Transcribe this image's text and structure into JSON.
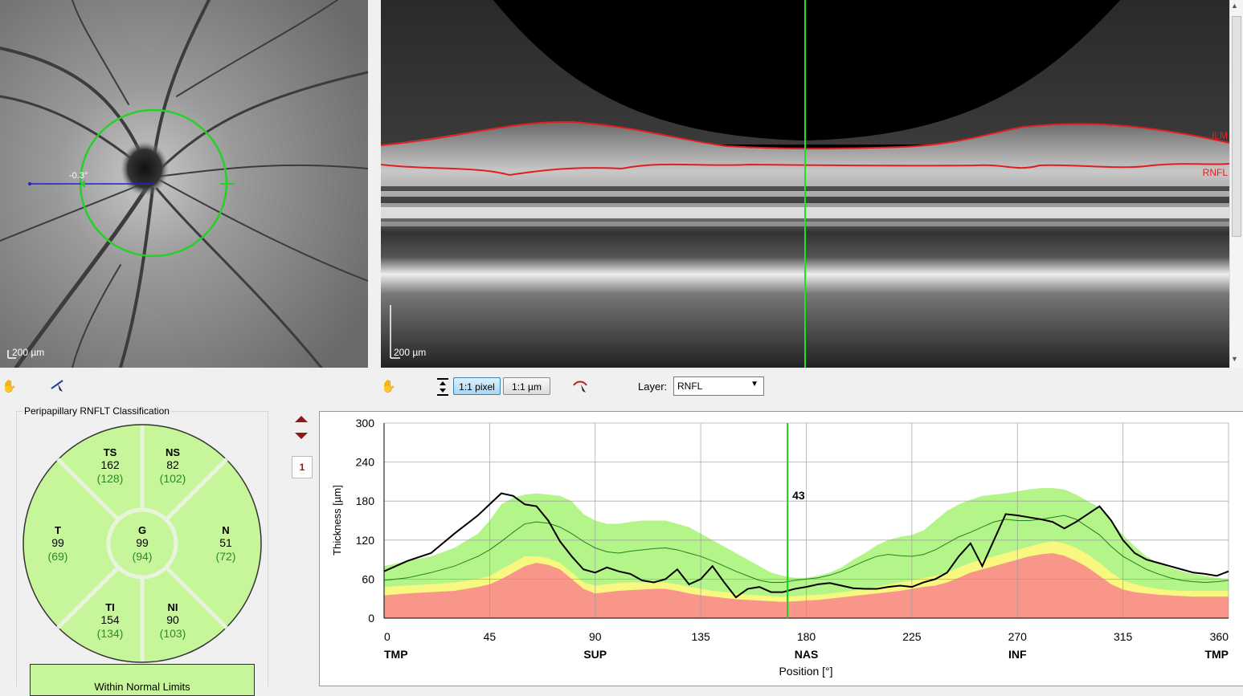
{
  "fundus": {
    "scale_label": "200 µm",
    "angle_label": "-0.3°",
    "circle_color": "#27d027",
    "line_color": "#2020d0"
  },
  "oct": {
    "scale_label": "200 µm",
    "layers": [
      "ILM",
      "RNFL"
    ],
    "line_color": "#e02020",
    "cursor_color": "#1ee01e"
  },
  "toolbar": {
    "hand_icon_left": "hand-pan-icon",
    "measure_icon": "measure-cursor-icon",
    "hand_icon_right": "hand-pan-icon",
    "fit_icon": "fit-height-icon",
    "pixel_label": "1:1 pixel",
    "um_label": "1:1 µm",
    "caliper_icon": "caliper-icon",
    "layer_label": "Layer:",
    "layer_value": "RNFL"
  },
  "classification": {
    "title": "Peripapillary RNFLT Classification",
    "fill": "#c6f59a",
    "sectors": {
      "TS": {
        "name": "TS",
        "value": "162",
        "ref": "(128)"
      },
      "NS": {
        "name": "NS",
        "value": "82",
        "ref": "(102)"
      },
      "T": {
        "name": "T",
        "value": "99",
        "ref": "(69)"
      },
      "G": {
        "name": "G",
        "value": "99",
        "ref": "(94)"
      },
      "N": {
        "name": "N",
        "value": "51",
        "ref": "(72)"
      },
      "TI": {
        "name": "TI",
        "value": "154",
        "ref": "(134)"
      },
      "NI": {
        "name": "NI",
        "value": "90",
        "ref": "(103)"
      }
    },
    "result": "Within Normal Limits"
  },
  "side_controls": {
    "up_icon": "arrow-up-icon",
    "down_icon": "arrow-down-icon",
    "page_number": "1"
  },
  "chart_data": {
    "type": "line",
    "xlabel": "Position [°]",
    "ylabel": "Thickness [µm]",
    "xlim": [
      0,
      360
    ],
    "ylim": [
      0,
      300
    ],
    "x_ticks": [
      0,
      45,
      90,
      135,
      180,
      225,
      270,
      315,
      360
    ],
    "y_ticks": [
      0,
      60,
      120,
      180,
      240,
      300
    ],
    "sector_labels": [
      {
        "x": 0,
        "label": "TMP"
      },
      {
        "x": 90,
        "label": "SUP"
      },
      {
        "x": 180,
        "label": "NAS"
      },
      {
        "x": 270,
        "label": "INF"
      },
      {
        "x": 360,
        "label": "TMP"
      }
    ],
    "cursor": {
      "x": 172,
      "value": "43"
    },
    "grid": true,
    "colors": {
      "green": "#b4f58a",
      "yellow": "#f8f880",
      "red": "#f8968a",
      "measured": "#000000",
      "normal": "#208020",
      "cursor": "#1ed01e"
    },
    "x": [
      0,
      10,
      20,
      30,
      40,
      45,
      50,
      55,
      60,
      65,
      70,
      75,
      80,
      85,
      90,
      95,
      100,
      105,
      110,
      115,
      120,
      125,
      130,
      135,
      140,
      145,
      150,
      155,
      160,
      165,
      170,
      175,
      180,
      185,
      190,
      195,
      200,
      205,
      210,
      215,
      220,
      225,
      230,
      235,
      240,
      245,
      250,
      255,
      260,
      265,
      270,
      275,
      280,
      285,
      290,
      295,
      300,
      305,
      310,
      315,
      320,
      325,
      330,
      335,
      340,
      345,
      350,
      355,
      360
    ],
    "series": [
      {
        "values": [
          72,
          88,
          100,
          130,
          158,
          175,
          192,
          188,
          175,
          172,
          150,
          118,
          95,
          75,
          70,
          78,
          72,
          68,
          58,
          55,
          60,
          75,
          52,
          60,
          80,
          55,
          32,
          45,
          48,
          40,
          40,
          45,
          48,
          52,
          54,
          50,
          46,
          45,
          45,
          48,
          50,
          48,
          55,
          60,
          70,
          95,
          115,
          80,
          120,
          160,
          158,
          155,
          152,
          148,
          138,
          148,
          160,
          172,
          150,
          120,
          100,
          90,
          85,
          80,
          75,
          70,
          68,
          65,
          72
        ]
      },
      {
        "values": [
          58,
          62,
          70,
          80,
          95,
          105,
          118,
          132,
          145,
          148,
          146,
          140,
          130,
          118,
          108,
          102,
          100,
          103,
          105,
          107,
          108,
          105,
          100,
          95,
          88,
          80,
          72,
          65,
          58,
          55,
          55,
          58,
          60,
          62,
          66,
          72,
          80,
          88,
          95,
          98,
          96,
          95,
          98,
          105,
          115,
          125,
          132,
          140,
          148,
          152,
          150,
          150,
          152,
          155,
          158,
          152,
          140,
          128,
          110,
          95,
          85,
          75,
          68,
          62,
          58,
          56,
          55,
          56,
          58
        ]
      }
    ],
    "bands": {
      "green_top": [
        80,
        88,
        95,
        108,
        130,
        150,
        175,
        185,
        190,
        192,
        190,
        188,
        180,
        160,
        150,
        145,
        145,
        148,
        150,
        150,
        150,
        145,
        140,
        130,
        120,
        110,
        100,
        90,
        80,
        70,
        65,
        62,
        62,
        65,
        70,
        78,
        90,
        100,
        112,
        120,
        125,
        128,
        135,
        150,
        165,
        175,
        182,
        188,
        190,
        192,
        195,
        198,
        200,
        200,
        198,
        190,
        180,
        170,
        150,
        128,
        110,
        95,
        85,
        78,
        72,
        68,
        65,
        62,
        60
      ],
      "yellow_top": [
        48,
        50,
        52,
        55,
        60,
        65,
        75,
        85,
        95,
        95,
        92,
        85,
        70,
        55,
        50,
        52,
        54,
        55,
        55,
        55,
        55,
        52,
        48,
        45,
        42,
        40,
        38,
        36,
        35,
        34,
        33,
        34,
        35,
        36,
        38,
        40,
        42,
        45,
        48,
        52,
        55,
        58,
        62,
        65,
        70,
        78,
        85,
        90,
        95,
        100,
        105,
        110,
        115,
        118,
        115,
        108,
        98,
        85,
        70,
        58,
        52,
        48,
        45,
        43,
        42,
        42,
        42,
        42,
        42
      ],
      "red_top": [
        35,
        38,
        40,
        42,
        48,
        52,
        60,
        70,
        80,
        85,
        82,
        75,
        60,
        45,
        38,
        40,
        42,
        43,
        44,
        45,
        45,
        42,
        38,
        35,
        33,
        31,
        29,
        28,
        27,
        26,
        25,
        26,
        27,
        28,
        30,
        32,
        34,
        36,
        38,
        40,
        42,
        45,
        48,
        50,
        55,
        62,
        70,
        75,
        80,
        85,
        90,
        95,
        98,
        100,
        96,
        88,
        78,
        65,
        52,
        44,
        40,
        38,
        36,
        35,
        34,
        33,
        33,
        33,
        33
      ]
    }
  }
}
